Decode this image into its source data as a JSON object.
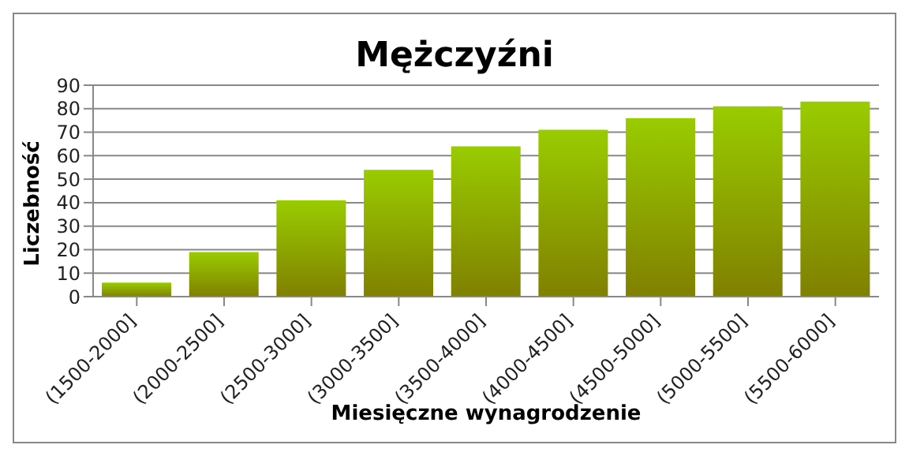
{
  "chart_data": {
    "type": "bar",
    "title": "Mężczyźni",
    "xlabel": "Miesięczne wynagrodzenie",
    "ylabel": "Liczebność",
    "categories": [
      "(1500-2000]",
      "(2000-2500]",
      "(2500-3000]",
      "(3000-3500]",
      "(3500-4000]",
      "(4000-4500]",
      "(4500-5000]",
      "(5000-5500]",
      "(5500-6000]"
    ],
    "values": [
      6,
      19,
      41,
      54,
      64,
      71,
      76,
      81,
      83
    ],
    "color": "#99cc00",
    "ylim": [
      0,
      90
    ],
    "yticks": [
      0,
      10,
      20,
      30,
      40,
      50,
      60,
      70,
      80,
      90
    ],
    "grid": "y"
  }
}
